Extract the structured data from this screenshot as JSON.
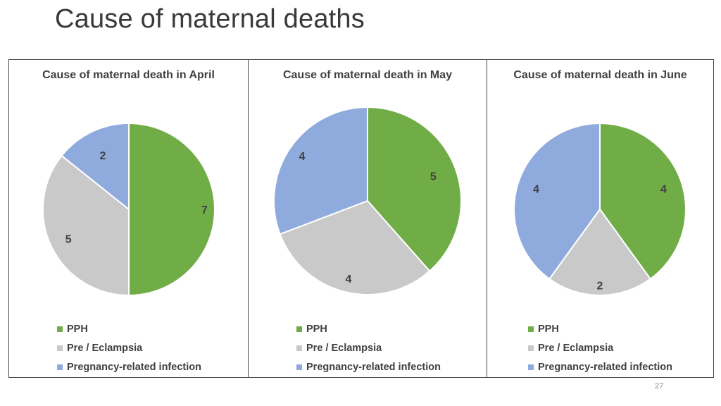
{
  "slide": {
    "title": "Cause of maternal deaths",
    "page_number": "27"
  },
  "colors": {
    "PPH": "#70ad47",
    "Pre / Eclampsia": "#c9c9c9",
    "Pregnancy-related infection": "#8faadc"
  },
  "chart_data": [
    {
      "type": "pie",
      "title": "Cause of maternal death in April",
      "categories": [
        "PPH",
        "Pre / Eclampsia",
        "Pregnancy-related infection"
      ],
      "values": [
        7,
        5,
        2
      ],
      "legend_placement": "bottom"
    },
    {
      "type": "pie",
      "title": "Cause of maternal death in May",
      "categories": [
        "PPH",
        "Pre / Eclampsia",
        "Pregnancy-related infection"
      ],
      "values": [
        5,
        4,
        4
      ],
      "legend_placement": "bottom"
    },
    {
      "type": "pie",
      "title": "Cause of maternal death in June",
      "categories": [
        "PPH",
        "Pre / Eclampsia",
        "Pregnancy-related infection"
      ],
      "values": [
        4,
        2,
        4
      ],
      "legend_placement": "bottom"
    }
  ]
}
